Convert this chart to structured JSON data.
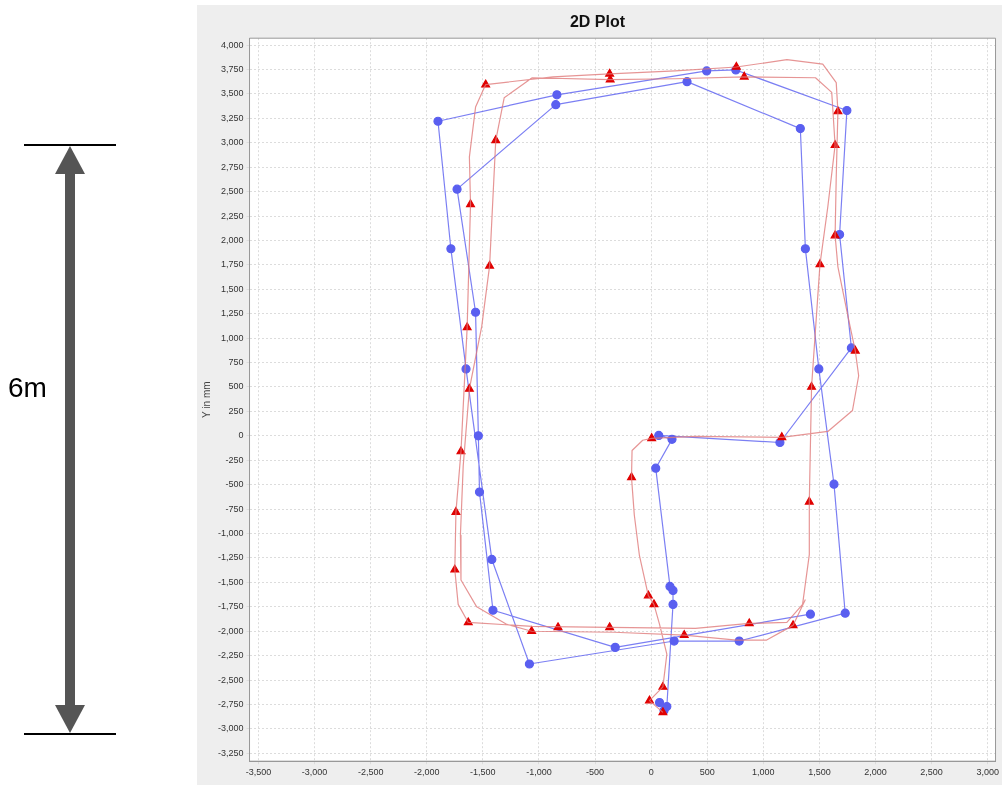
{
  "chart_data": {
    "type": "line",
    "title": "2D Plot",
    "ylabel": "Y in mm",
    "annotations": [
      "6m"
    ],
    "xlim": [
      -3580,
      3070
    ],
    "ylim": [
      -3330,
      4070
    ],
    "xticks": [
      {
        "value": -3500,
        "label": "-3,500"
      },
      {
        "value": -3000,
        "label": "-3,000"
      },
      {
        "value": -2500,
        "label": "-2,500"
      },
      {
        "value": -2000,
        "label": "-2,000"
      },
      {
        "value": -1500,
        "label": "-1,500"
      },
      {
        "value": -1000,
        "label": "-1,000"
      },
      {
        "value": -500,
        "label": "-500"
      },
      {
        "value": 0,
        "label": "0"
      },
      {
        "value": 500,
        "label": "500"
      },
      {
        "value": 1000,
        "label": "1,000"
      },
      {
        "value": 1500,
        "label": "1,500"
      },
      {
        "value": 2000,
        "label": "2,000"
      },
      {
        "value": 2500,
        "label": "2,500"
      },
      {
        "value": 3000,
        "label": "3,000"
      }
    ],
    "yticks": [
      {
        "value": -3250,
        "label": "-3,250"
      },
      {
        "value": -3000,
        "label": "-3,000"
      },
      {
        "value": -2750,
        "label": "-2,750"
      },
      {
        "value": -2500,
        "label": "-2,500"
      },
      {
        "value": -2250,
        "label": "-2,250"
      },
      {
        "value": -2000,
        "label": "-2,000"
      },
      {
        "value": -1750,
        "label": "-1,750"
      },
      {
        "value": -1500,
        "label": "-1,500"
      },
      {
        "value": -1250,
        "label": "-1,250"
      },
      {
        "value": -1000,
        "label": "-1,000"
      },
      {
        "value": -750,
        "label": "-750"
      },
      {
        "value": -500,
        "label": "-500"
      },
      {
        "value": -250,
        "label": "-250"
      },
      {
        "value": 0,
        "label": "0"
      },
      {
        "value": 250,
        "label": "250"
      },
      {
        "value": 500,
        "label": "500"
      },
      {
        "value": 750,
        "label": "750"
      },
      {
        "value": 1000,
        "label": "1,000"
      },
      {
        "value": 1250,
        "label": "1,250"
      },
      {
        "value": 1500,
        "label": "1,500"
      },
      {
        "value": 1750,
        "label": "1,750"
      },
      {
        "value": 2000,
        "label": "2,000"
      },
      {
        "value": 2250,
        "label": "2,250"
      },
      {
        "value": 2500,
        "label": "2,500"
      },
      {
        "value": 2750,
        "label": "2,750"
      },
      {
        "value": 3000,
        "label": "3,000"
      },
      {
        "value": 3250,
        "label": "3,250"
      },
      {
        "value": 3500,
        "label": "3,500"
      },
      {
        "value": 3750,
        "label": "3,750"
      },
      {
        "value": 4000,
        "label": "4,000"
      }
    ],
    "grid": true,
    "legend": false,
    "line_style": "solid",
    "series": [
      {
        "type": "line",
        "marker": "none",
        "color": "#e07a7a",
        "x": [
          105,
          -15,
          105,
          140,
          75,
          25,
          -25,
          -105,
          -150,
          -175,
          -170,
          -75,
          5,
          395,
          1165,
          1575,
          1795,
          1850,
          1820,
          1755,
          1665,
          1640,
          1650,
          1665,
          1650,
          1530,
          1210,
          760,
          215,
          -370,
          -875,
          -1475,
          -1565,
          -1620,
          -1610,
          -1640,
          -1695,
          -1740,
          -1750,
          -1720,
          -1630,
          -1060,
          -370,
          395,
          875,
          1210,
          1350,
          1410,
          1410,
          1430,
          1505,
          1575,
          1640,
          1610,
          1465,
          830,
          215,
          -365,
          -1060,
          -1310,
          -1385,
          -1440,
          -1510,
          -1620,
          -1675,
          -1700,
          -1695,
          -1555,
          -1285,
          -1065,
          -330,
          295,
          760,
          1030,
          1265,
          1375
        ],
        "values": [
          -2830,
          -2710,
          -2570,
          -2235,
          -1930,
          -1725,
          -1635,
          -1220,
          -810,
          -425,
          -150,
          -45,
          -25,
          -5,
          -15,
          45,
          260,
          615,
          870,
          1220,
          1730,
          2050,
          2650,
          3320,
          3615,
          3805,
          3850,
          3775,
          3735,
          3705,
          3675,
          3595,
          3365,
          2855,
          2370,
          1110,
          -160,
          -780,
          -1370,
          -1725,
          -1910,
          -1950,
          -1960,
          -1970,
          -1920,
          -1910,
          -1725,
          -1215,
          -675,
          500,
          1755,
          2345,
          2975,
          3515,
          3665,
          3675,
          3655,
          3645,
          3665,
          3460,
          3025,
          1740,
          1120,
          480,
          -305,
          -1015,
          -1475,
          -1750,
          -1930,
          -2000,
          -2010,
          -2040,
          -2090,
          -2090,
          -1940,
          -1675
        ]
      },
      {
        "type": "scatter",
        "marker": "triangle",
        "color": "#e00000",
        "x": [
          -1475,
          -370,
          -365,
          760,
          830,
          1665,
          1640,
          -1385,
          -1610,
          -1440,
          -1640,
          -1620,
          -1695,
          -1740,
          -1750,
          -1630,
          -1065,
          -830,
          -370,
          1640,
          1505,
          1820,
          1430,
          1165,
          1410,
          1265,
          -25,
          25,
          875,
          295,
          105,
          -15,
          105,
          5,
          -175
        ],
        "values": [
          3595,
          3705,
          3645,
          3775,
          3675,
          3320,
          2975,
          3025,
          2370,
          1740,
          1110,
          480,
          -160,
          -780,
          -1370,
          -1910,
          -2000,
          -1960,
          -1960,
          2050,
          1755,
          870,
          500,
          -15,
          -675,
          -1940,
          -1635,
          -1725,
          -1920,
          -2040,
          -2570,
          -2710,
          -2830,
          -25,
          -425
        ]
      },
      {
        "type": "line",
        "marker": "circle",
        "color": "#5a5ff0",
        "x": [
          115,
          75,
          140,
          195,
          195,
          168,
          41,
          186,
          68,
          1148,
          1785,
          1680,
          1745,
          755,
          495,
          -840,
          -1900,
          -1785,
          -1650,
          -1420,
          -1085,
          205,
          785,
          1730,
          1630,
          1495,
          1375,
          1330,
          320,
          -850,
          -1730,
          -1565,
          -1540,
          -1530,
          -1410,
          -320,
          1420
        ],
        "values": [
          -2810,
          -2730,
          -2770,
          -1725,
          -1582,
          -1541,
          -331,
          -36,
          4,
          -68,
          900,
          2060,
          3330,
          3745,
          3735,
          3490,
          3220,
          1915,
          685,
          -1265,
          -2335,
          -2100,
          -2100,
          -1815,
          -495,
          685,
          1915,
          3145,
          3625,
          3390,
          2525,
          1265,
          0,
          -575,
          -1785,
          -2165,
          -1825
        ]
      }
    ]
  }
}
